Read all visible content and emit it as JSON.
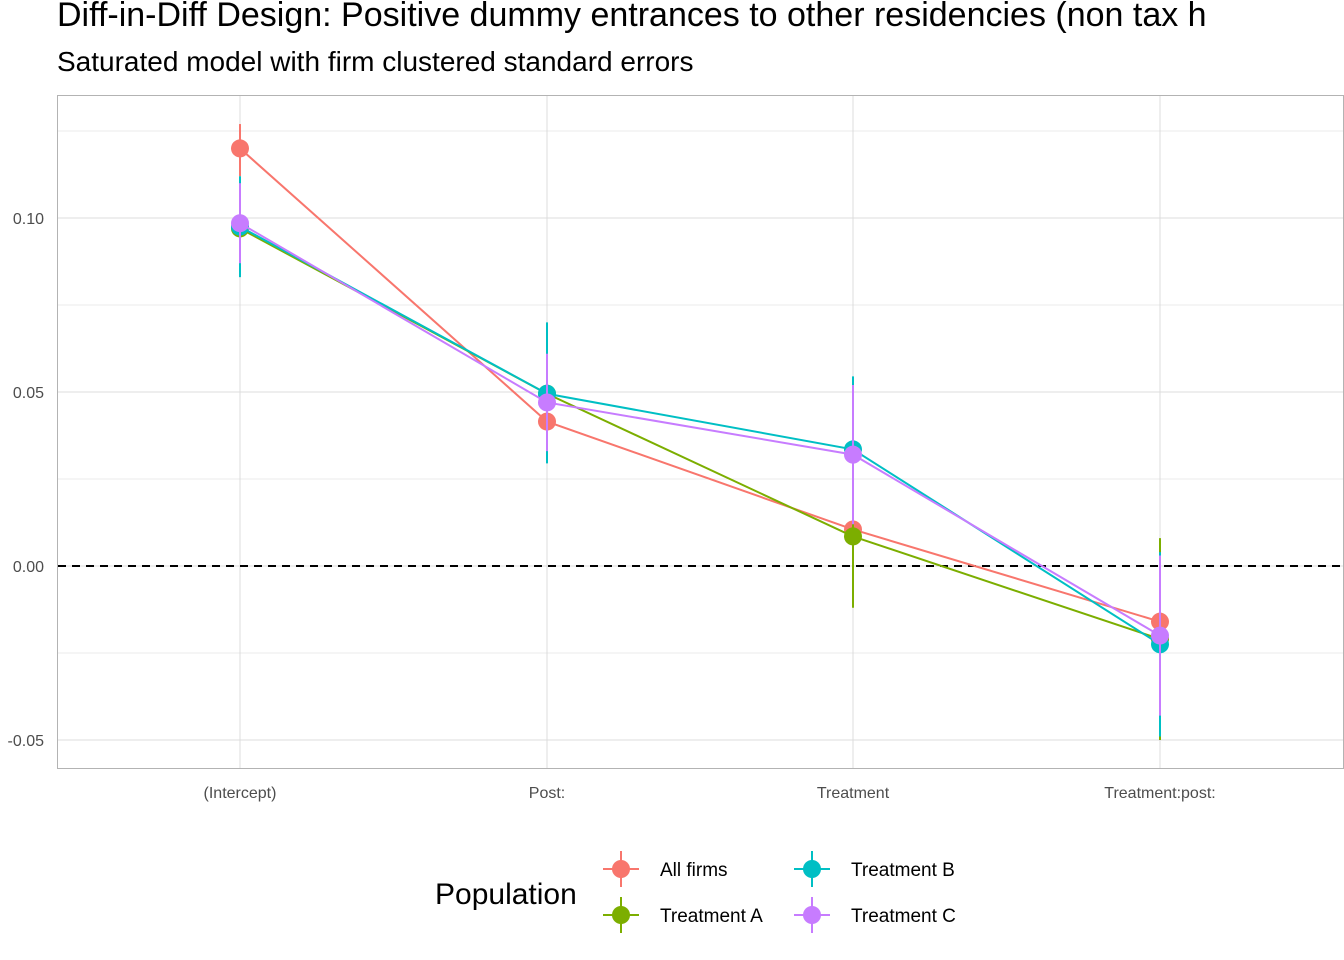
{
  "title": "Diff-in-Diff Design: Positive dummy entrances to other residencies (non tax h",
  "subtitle": "Saturated model with firm clustered standard errors",
  "chart_data": {
    "type": "line",
    "categories": [
      "(Intercept)",
      "Post:",
      "Treatment",
      "Treatment:post:"
    ],
    "ylim": [
      -0.058,
      0.135
    ],
    "y_ticks": [
      -0.05,
      0.0,
      0.05,
      0.1
    ],
    "y_tick_labels": [
      "-0.05",
      "0.00",
      "0.05",
      "0.10"
    ],
    "hline": 0.0,
    "grid": true,
    "legend": {
      "title": "Population",
      "position": "bottom"
    },
    "series": [
      {
        "name": "All firms",
        "color": "#F8766D",
        "values": [
          0.12,
          0.0415,
          0.0105,
          -0.016
        ],
        "lower": [
          0.112,
          0.032,
          0.002,
          -0.027
        ],
        "upper": [
          0.127,
          0.051,
          0.019,
          -0.005
        ]
      },
      {
        "name": "Treatment A",
        "color": "#7CAE00",
        "values": [
          0.097,
          0.0495,
          0.0085,
          -0.021
        ],
        "lower": [
          0.084,
          0.03,
          -0.012,
          -0.05
        ],
        "upper": [
          0.11,
          0.069,
          0.029,
          0.008
        ]
      },
      {
        "name": "Treatment B",
        "color": "#00BFC4",
        "values": [
          0.0975,
          0.0495,
          0.0335,
          -0.0225
        ],
        "lower": [
          0.083,
          0.0295,
          0.0125,
          -0.049
        ],
        "upper": [
          0.112,
          0.07,
          0.0545,
          0.004
        ]
      },
      {
        "name": "Treatment C",
        "color": "#C77CFF",
        "values": [
          0.0985,
          0.047,
          0.032,
          -0.02
        ],
        "lower": [
          0.087,
          0.033,
          0.012,
          -0.043
        ],
        "upper": [
          0.11,
          0.061,
          0.052,
          0.003
        ]
      }
    ]
  }
}
